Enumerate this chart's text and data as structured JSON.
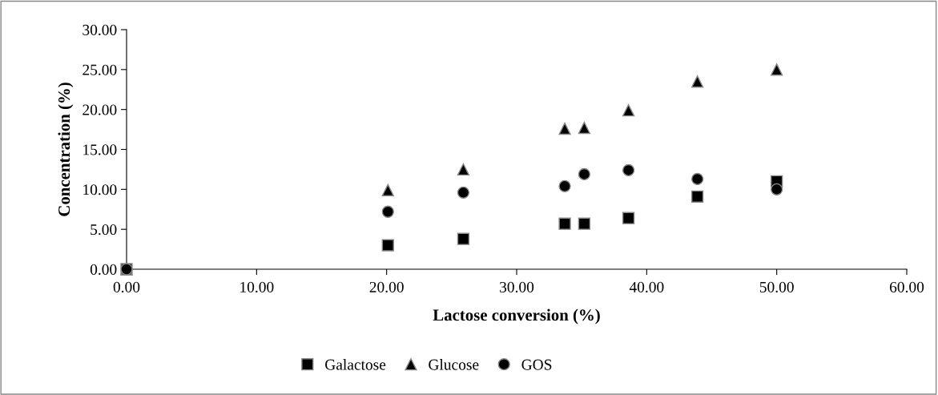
{
  "chart_data": {
    "type": "scatter",
    "xlabel": "Lactose conversion (%)",
    "ylabel": "Concentration (%)",
    "x": [
      0,
      20.1,
      25.9,
      33.7,
      35.2,
      38.6,
      43.9,
      50.0
    ],
    "series": [
      {
        "name": "Galactose",
        "color": "#000000",
        "marker": "square",
        "values": [
          0,
          3.0,
          3.8,
          5.7,
          5.7,
          6.4,
          9.1,
          11.0
        ]
      },
      {
        "name": "Glucose",
        "color": "#000000",
        "marker": "triangle",
        "values": [
          0,
          9.9,
          12.5,
          17.6,
          17.7,
          19.9,
          23.5,
          25.0
        ]
      },
      {
        "name": "GOS",
        "color": "#000000",
        "marker": "circle",
        "values": [
          0,
          7.2,
          9.6,
          10.4,
          11.9,
          12.4,
          11.3,
          10.0
        ]
      }
    ],
    "xlim": [
      0,
      60
    ],
    "xticks": [
      {
        "value": 0,
        "label": "0.00"
      },
      {
        "value": 10,
        "label": "10.00"
      },
      {
        "value": 20,
        "label": "20.00"
      },
      {
        "value": 30,
        "label": "30.00"
      },
      {
        "value": 40,
        "label": "40.00"
      },
      {
        "value": 50,
        "label": "50.00"
      },
      {
        "value": 60,
        "label": "60.00"
      }
    ],
    "ylim": [
      0,
      30
    ],
    "yticks": [
      {
        "value": 0,
        "label": "0.00"
      },
      {
        "value": 5,
        "label": "5.00"
      },
      {
        "value": 10,
        "label": "10.00"
      },
      {
        "value": 15,
        "label": "15.00"
      },
      {
        "value": 20,
        "label": "20.00"
      },
      {
        "value": 25,
        "label": "25.00"
      },
      {
        "value": 30,
        "label": "30.00"
      }
    ],
    "grid": false,
    "legend": "bottom"
  }
}
